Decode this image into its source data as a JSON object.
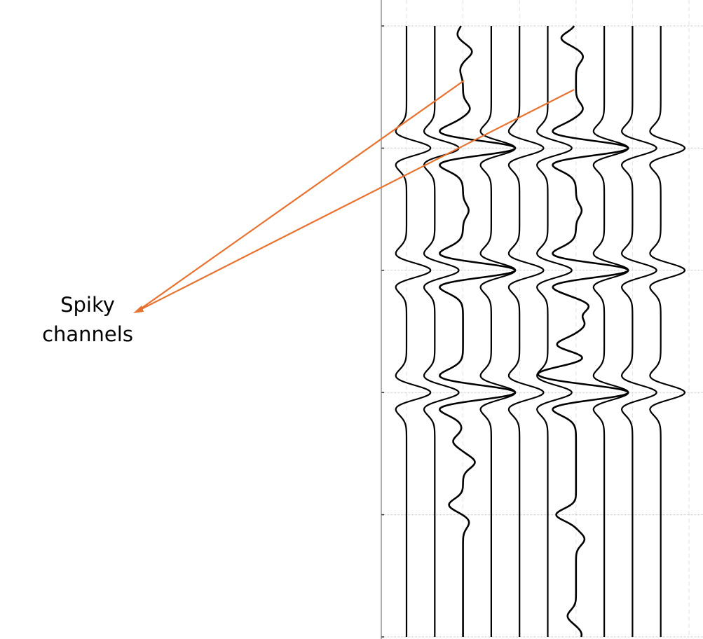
{
  "chart_data": {
    "type": "line",
    "style": "seismic wiggle traces",
    "title": "",
    "xlabel": "",
    "ylabel": "",
    "time_range": [
      0,
      5
    ],
    "time_gridlines": [
      0,
      1,
      2,
      3,
      4,
      5
    ],
    "trace_count": 10,
    "dashed_gridline_traces": [
      1,
      3,
      5,
      7,
      9,
      11
    ],
    "grid": true,
    "wavelet": "ricker",
    "events": [
      {
        "t": 1,
        "amplitude": 0.85
      },
      {
        "t": 2,
        "amplitude": 0.85
      },
      {
        "t": 3,
        "amplitude": 0.85
      }
    ],
    "traces": [
      {
        "index": 1,
        "spiky": false
      },
      {
        "index": 2,
        "spiky": false
      },
      {
        "index": 3,
        "spiky": true,
        "event_amplitude": 1.85,
        "noise": [
          [
            0.07,
            -0.2
          ],
          [
            0.21,
            0.32
          ],
          [
            0.36,
            -0.1
          ],
          [
            0.68,
            0.25
          ],
          [
            1.51,
            0.2
          ],
          [
            3.4,
            -0.35
          ],
          [
            3.57,
            0.42
          ],
          [
            3.92,
            -0.5
          ],
          [
            4.06,
            0.22
          ]
        ]
      },
      {
        "index": 4,
        "spiky": false
      },
      {
        "index": 5,
        "spiky": false
      },
      {
        "index": 6,
        "spiky": false
      },
      {
        "index": 7,
        "spiky": true,
        "event_amplitude": 1.85,
        "noise": [
          [
            0.1,
            -0.52
          ],
          [
            0.25,
            0.25
          ],
          [
            0.68,
            0.25
          ],
          [
            1.51,
            0.2
          ],
          [
            2.29,
            0.47
          ],
          [
            2.44,
            0.3
          ],
          [
            2.61,
            -0.7
          ],
          [
            2.72,
            0.37
          ],
          [
            2.83,
            -0.6
          ],
          [
            4.0,
            -0.7
          ],
          [
            4.2,
            0.3
          ],
          [
            4.83,
            -0.3
          ],
          [
            4.98,
            0.2
          ]
        ]
      },
      {
        "index": 8,
        "spiky": false
      },
      {
        "index": 9,
        "spiky": false
      },
      {
        "index": 10,
        "spiky": false
      }
    ],
    "trace_color": "#000000",
    "grid_color": "#c8c8c8"
  },
  "annotation": {
    "line1": "Spiky",
    "line2": "channels",
    "color": "#E8722F",
    "points_to_traces": [
      3,
      7
    ]
  }
}
